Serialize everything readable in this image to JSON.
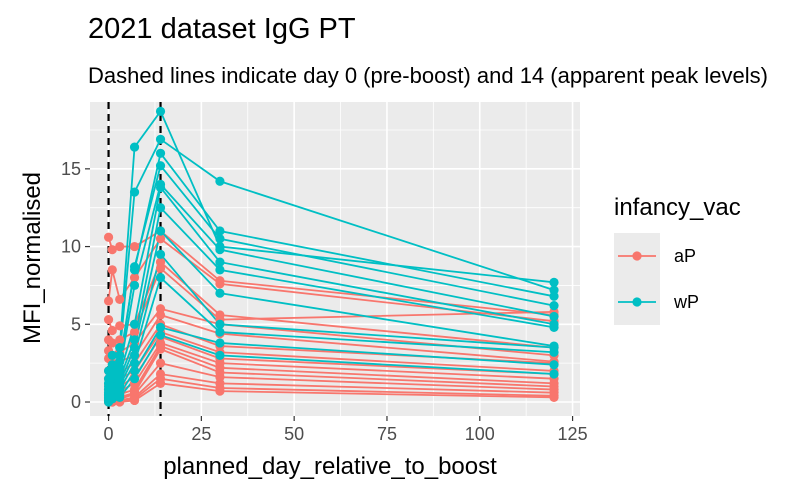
{
  "chart_data": {
    "type": "line",
    "title": "2021 dataset IgG PT",
    "subtitle": "Dashed lines indicate day 0 (pre-boost) and 14 (apparent peak levels)",
    "xlabel": "planned_day_relative_to_boost",
    "ylabel": "MFI_normalised",
    "xlim": [
      -5,
      127
    ],
    "ylim": [
      -0.9,
      19.3
    ],
    "x_ticks": [
      0,
      25,
      50,
      75,
      100,
      125
    ],
    "y_ticks": [
      0,
      5,
      10,
      15
    ],
    "vlines": [
      0,
      14
    ],
    "grid": true,
    "legend": {
      "title": "infancy_vac",
      "placement": "right",
      "entries": [
        {
          "label": "aP",
          "color": "#F8766D"
        },
        {
          "label": "wP",
          "color": "#00BFC4"
        }
      ]
    },
    "x": [
      0,
      1,
      3,
      7,
      14,
      30,
      120
    ],
    "series": [
      {
        "group": "aP",
        "color": "#F8766D",
        "values": [
          10.6,
          9.8,
          10.0,
          10.0,
          11.0,
          7.8,
          5.6
        ]
      },
      {
        "group": "aP",
        "color": "#F8766D",
        "values": [
          6.5,
          8.5,
          6.6,
          8.0,
          10.5,
          7.6,
          5.2
        ]
      },
      {
        "group": "aP",
        "color": "#F8766D",
        "values": [
          5.3,
          4.6,
          4.9,
          5.0,
          9.0,
          5.6,
          3.5
        ]
      },
      {
        "group": "aP",
        "color": "#F8766D",
        "values": [
          4.0,
          3.8,
          4.0,
          4.5,
          8.6,
          5.3,
          5.8
        ]
      },
      {
        "group": "aP",
        "color": "#F8766D",
        "values": [
          3.3,
          3.0,
          3.2,
          3.8,
          6.0,
          5.0,
          3.0
        ]
      },
      {
        "group": "aP",
        "color": "#F8766D",
        "values": [
          2.8,
          2.5,
          2.6,
          3.0,
          5.6,
          4.4,
          2.6
        ]
      },
      {
        "group": "aP",
        "color": "#F8766D",
        "values": [
          2.0,
          1.8,
          1.9,
          2.5,
          5.0,
          3.6,
          2.5
        ]
      },
      {
        "group": "aP",
        "color": "#F8766D",
        "values": [
          1.5,
          1.4,
          1.5,
          2.0,
          4.5,
          3.2,
          2.0
        ]
      },
      {
        "group": "aP",
        "color": "#F8766D",
        "values": [
          1.1,
          1.0,
          1.0,
          1.6,
          4.2,
          2.8,
          1.8
        ]
      },
      {
        "group": "aP",
        "color": "#F8766D",
        "values": [
          0.8,
          0.7,
          0.7,
          1.2,
          3.8,
          2.5,
          1.5
        ]
      },
      {
        "group": "aP",
        "color": "#F8766D",
        "values": [
          0.5,
          0.4,
          0.5,
          0.8,
          3.6,
          2.2,
          1.2
        ]
      },
      {
        "group": "aP",
        "color": "#F8766D",
        "values": [
          0.3,
          0.2,
          0.3,
          0.6,
          3.4,
          1.9,
          1.0
        ]
      },
      {
        "group": "aP",
        "color": "#F8766D",
        "values": [
          0.2,
          0.1,
          0.2,
          0.5,
          2.5,
          1.6,
          0.8
        ]
      },
      {
        "group": "aP",
        "color": "#F8766D",
        "values": [
          0.1,
          0.05,
          0.1,
          0.3,
          1.8,
          1.2,
          0.6
        ]
      },
      {
        "group": "aP",
        "color": "#F8766D",
        "values": [
          0.05,
          0.0,
          0.05,
          0.2,
          1.5,
          0.9,
          0.4
        ]
      },
      {
        "group": "aP",
        "color": "#F8766D",
        "values": [
          0.0,
          0.0,
          0.0,
          0.1,
          1.2,
          0.7,
          0.3
        ]
      },
      {
        "group": "wP",
        "color": "#00BFC4",
        "values": [
          2.0,
          3.0,
          3.5,
          16.4,
          18.7,
          10.0,
          7.7
        ]
      },
      {
        "group": "wP",
        "color": "#00BFC4",
        "values": [
          1.5,
          2.4,
          3.0,
          13.5,
          16.9,
          14.2,
          7.2
        ]
      },
      {
        "group": "wP",
        "color": "#00BFC4",
        "values": [
          1.2,
          2.0,
          2.6,
          8.5,
          16.0,
          11.0,
          6.8
        ]
      },
      {
        "group": "wP",
        "color": "#00BFC4",
        "values": [
          1.0,
          1.7,
          2.2,
          8.7,
          15.2,
          10.5,
          6.2
        ]
      },
      {
        "group": "wP",
        "color": "#00BFC4",
        "values": [
          0.8,
          1.5,
          2.0,
          7.5,
          14.0,
          9.8,
          5.5
        ]
      },
      {
        "group": "wP",
        "color": "#00BFC4",
        "values": [
          0.6,
          1.2,
          1.8,
          5.0,
          13.8,
          9.0,
          5.0
        ]
      },
      {
        "group": "wP",
        "color": "#00BFC4",
        "values": [
          0.5,
          1.0,
          1.5,
          4.0,
          12.5,
          8.5,
          4.8
        ]
      },
      {
        "group": "wP",
        "color": "#00BFC4",
        "values": [
          0.4,
          0.8,
          1.2,
          3.5,
          11.0,
          7.0,
          3.6
        ]
      },
      {
        "group": "wP",
        "color": "#00BFC4",
        "values": [
          0.3,
          0.6,
          1.0,
          3.0,
          9.5,
          5.0,
          3.5
        ]
      },
      {
        "group": "wP",
        "color": "#00BFC4",
        "values": [
          0.2,
          0.5,
          0.8,
          2.5,
          8.0,
          4.5,
          3.2
        ]
      },
      {
        "group": "wP",
        "color": "#00BFC4",
        "values": [
          0.1,
          0.3,
          0.5,
          2.0,
          4.8,
          3.8,
          2.4
        ]
      },
      {
        "group": "wP",
        "color": "#00BFC4",
        "values": [
          0.0,
          0.2,
          0.3,
          1.5,
          4.3,
          3.0,
          1.8
        ]
      }
    ]
  }
}
